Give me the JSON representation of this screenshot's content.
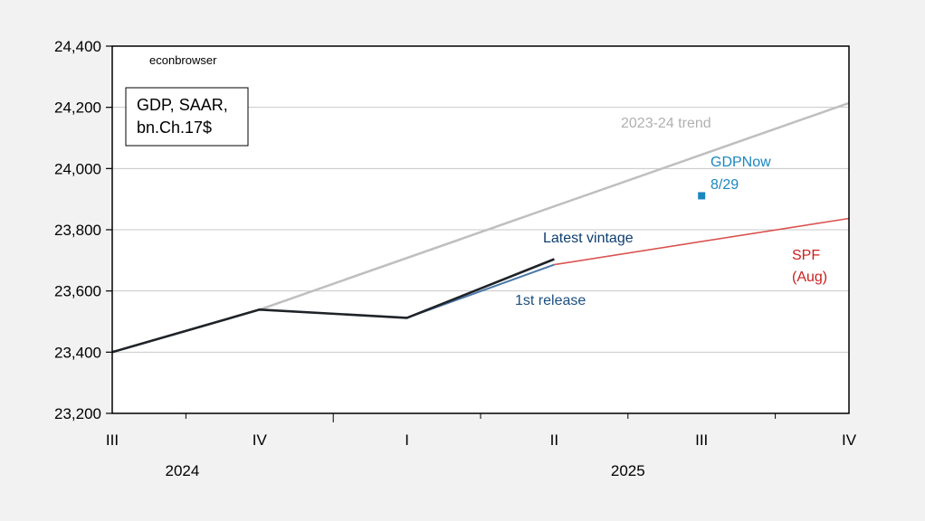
{
  "chart_data": {
    "type": "line",
    "title": "",
    "watermark": "econbrowser",
    "legend_box": [
      "GDP, SAAR,",
      "bn.Ch.17$"
    ],
    "xlabel": "",
    "ylabel": "",
    "x": [
      "2024Q3",
      "2024Q4",
      "2025Q1",
      "2025Q2",
      "2025Q3",
      "2025Q4"
    ],
    "x_tick_labels": [
      "III",
      "IV",
      "I",
      "II",
      "III",
      "IV"
    ],
    "x_year_labels": [
      {
        "label": "2024",
        "at": "2024Q4"
      },
      {
        "label": "2025",
        "at": "2025Q3"
      }
    ],
    "ylim": [
      23200,
      24400
    ],
    "y_ticks": [
      23200,
      23400,
      23600,
      23800,
      24000,
      24200,
      24400
    ],
    "y_tick_labels": [
      "23,200",
      "23,400",
      "23,600",
      "23,800",
      "24,000",
      "24,200",
      "24,400"
    ],
    "grid": true,
    "series": [
      {
        "name": "2023-24 trend",
        "color": "#bfbfbf",
        "points": [
          [
            "2024Q4",
            23539
          ],
          [
            "2025Q4",
            24214
          ]
        ]
      },
      {
        "name": "1st release",
        "color": "#4a78a8",
        "points": [
          [
            "2025Q1",
            23512
          ],
          [
            "2025Q2",
            23686
          ]
        ]
      },
      {
        "name": "Latest vintage",
        "color": "#1f2328",
        "points": [
          [
            "2024Q3",
            23400
          ],
          [
            "2024Q4",
            23539
          ],
          [
            "2025Q1",
            23512
          ],
          [
            "2025Q2",
            23704
          ]
        ]
      },
      {
        "name": "SPF (Aug)",
        "color": "#d9534f",
        "points": [
          [
            "2025Q2",
            23686
          ],
          [
            "2025Q4",
            23837
          ]
        ]
      },
      {
        "name": "GDPNow 8/29",
        "color": "#1a86c0",
        "type": "marker",
        "points": [
          [
            "2025Q3",
            23911
          ]
        ]
      }
    ],
    "annotations": {
      "trend": {
        "text": "2023-24 trend",
        "color": "#b0b0b0"
      },
      "gdpnow": {
        "lines": [
          "GDPNow",
          "8/29"
        ],
        "color": "#1a86c0"
      },
      "latest": {
        "text": "Latest vintage",
        "color": "#0e3e6e"
      },
      "first": {
        "text": "1st release",
        "color": "#1c4f80"
      },
      "spf": {
        "lines": [
          "SPF",
          "(Aug)"
        ],
        "color": "#cc1f1f"
      }
    }
  }
}
